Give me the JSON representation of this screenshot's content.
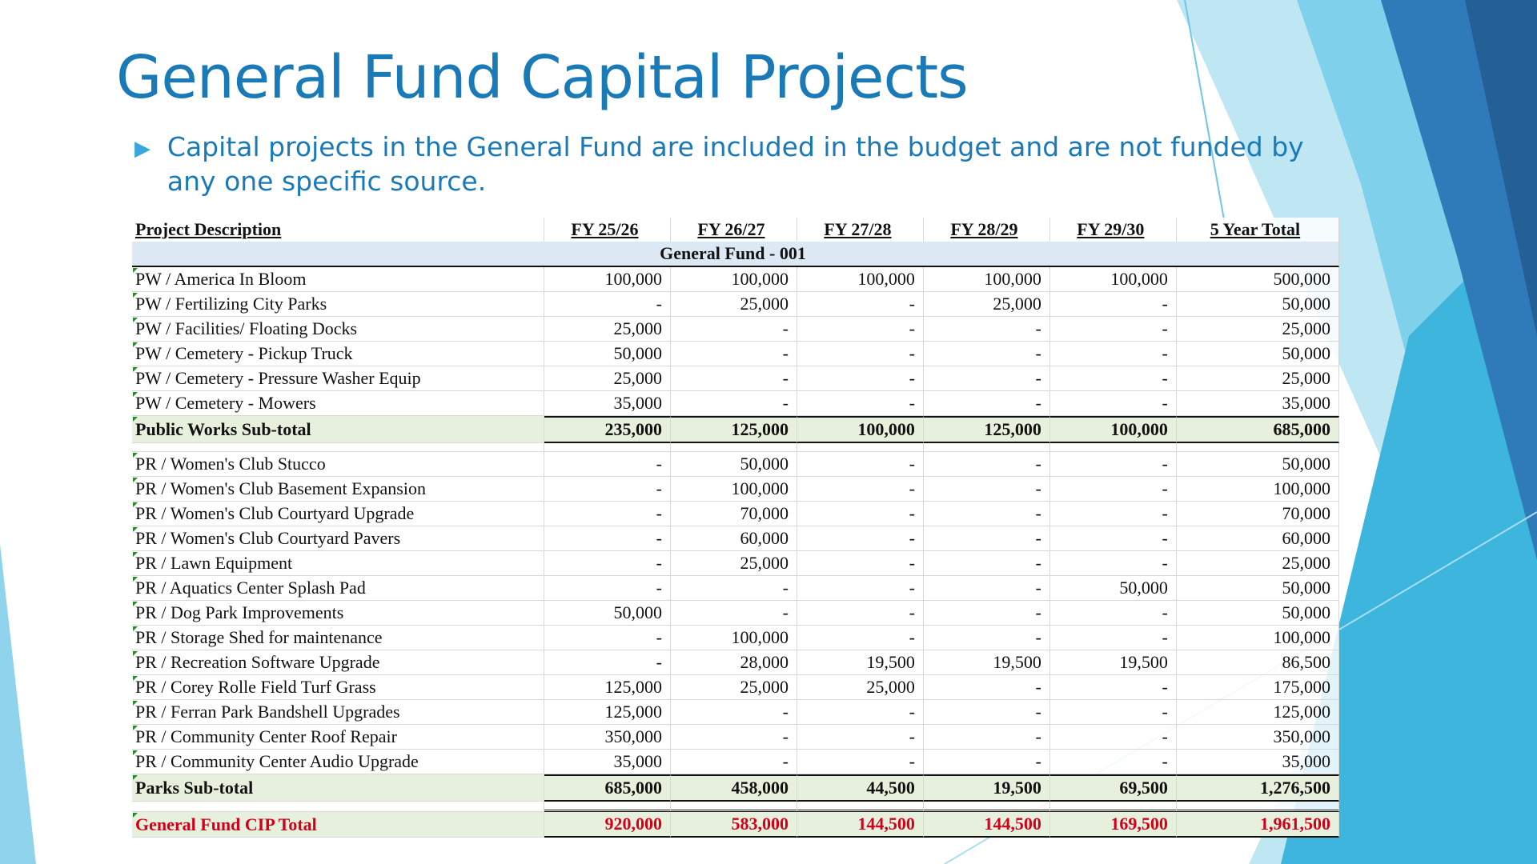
{
  "title": "General Fund Capital Projects",
  "bullet": "Capital projects in the General Fund are included in the budget and are not funded by any one specific source.",
  "colors": {
    "title": "#1a7ab8",
    "total_text": "#d0021b",
    "subtotal_bg": "#e6f0dc",
    "section_bg": "#dce8f3"
  },
  "table": {
    "headers": [
      "Project Description",
      "FY 25/26",
      "FY 26/27",
      "FY 27/28",
      "FY 28/29",
      "FY 29/30",
      "5 Year Total"
    ],
    "section": "General Fund - 001",
    "public_works": [
      [
        "PW / America In Bloom",
        "100,000",
        "100,000",
        "100,000",
        "100,000",
        "100,000",
        "500,000"
      ],
      [
        "PW / Fertilizing City Parks",
        "-",
        "25,000",
        "-",
        "25,000",
        "-",
        "50,000"
      ],
      [
        "PW / Facilities/ Floating Docks",
        "25,000",
        "-",
        "-",
        "-",
        "-",
        "25,000"
      ],
      [
        "PW / Cemetery - Pickup Truck",
        "50,000",
        "-",
        "-",
        "-",
        "-",
        "50,000"
      ],
      [
        "PW / Cemetery - Pressure Washer Equip",
        "25,000",
        "-",
        "-",
        "-",
        "-",
        "25,000"
      ],
      [
        "PW / Cemetery - Mowers",
        "35,000",
        "-",
        "-",
        "-",
        "-",
        "35,000"
      ]
    ],
    "public_works_subtotal": [
      "Public Works Sub-total",
      "235,000",
      "125,000",
      "100,000",
      "125,000",
      "100,000",
      "685,000"
    ],
    "parks": [
      [
        "PR / Women's Club Stucco",
        "-",
        "50,000",
        "-",
        "-",
        "-",
        "50,000"
      ],
      [
        "PR / Women's Club Basement Expansion",
        "-",
        "100,000",
        "-",
        "-",
        "-",
        "100,000"
      ],
      [
        "PR / Women's Club Courtyard Upgrade",
        "-",
        "70,000",
        "-",
        "-",
        "-",
        "70,000"
      ],
      [
        "PR / Women's Club Courtyard Pavers",
        "-",
        "60,000",
        "-",
        "-",
        "-",
        "60,000"
      ],
      [
        "PR / Lawn Equipment",
        "-",
        "25,000",
        "-",
        "-",
        "-",
        "25,000"
      ],
      [
        "PR / Aquatics Center Splash Pad",
        "-",
        "-",
        "-",
        "-",
        "50,000",
        "50,000"
      ],
      [
        "PR / Dog Park Improvements",
        "50,000",
        "-",
        "-",
        "-",
        "-",
        "50,000"
      ],
      [
        "PR / Storage Shed for maintenance",
        "-",
        "100,000",
        "-",
        "-",
        "-",
        "100,000"
      ],
      [
        "PR / Recreation Software Upgrade",
        "-",
        "28,000",
        "19,500",
        "19,500",
        "19,500",
        "86,500"
      ],
      [
        "PR / Corey Rolle Field Turf Grass",
        "125,000",
        "25,000",
        "25,000",
        "-",
        "-",
        "175,000"
      ],
      [
        "PR / Ferran Park Bandshell Upgrades",
        "125,000",
        "-",
        "-",
        "-",
        "-",
        "125,000"
      ],
      [
        "PR / Community Center Roof Repair",
        "350,000",
        "-",
        "-",
        "-",
        "-",
        "350,000"
      ],
      [
        "PR / Community Center Audio Upgrade",
        "35,000",
        "-",
        "-",
        "-",
        "-",
        "35,000"
      ]
    ],
    "parks_subtotal": [
      "Parks Sub-total",
      "685,000",
      "458,000",
      "44,500",
      "19,500",
      "69,500",
      "1,276,500"
    ],
    "grand_total": [
      "General Fund CIP Total",
      "920,000",
      "583,000",
      "144,500",
      "144,500",
      "169,500",
      "1,961,500"
    ]
  }
}
